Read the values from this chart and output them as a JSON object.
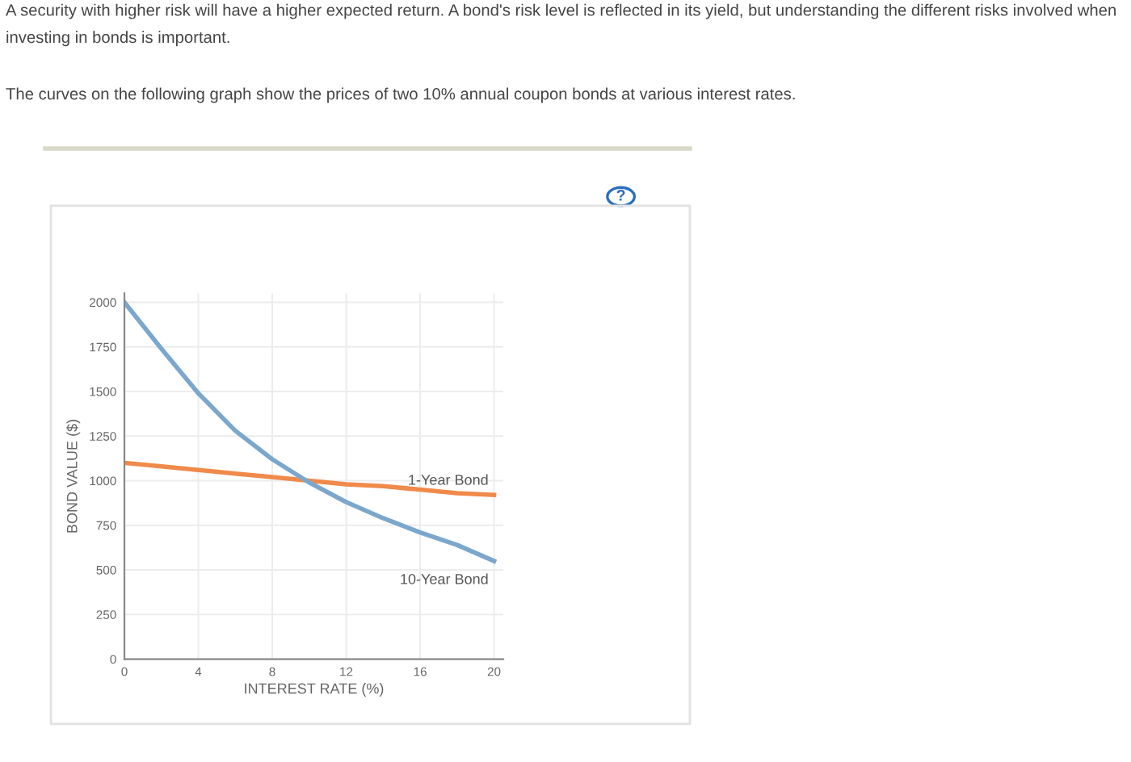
{
  "chart_data": {
    "type": "line",
    "title": "A security with higher risk will have a higher expected return. A bond's risk level is reflected in its yield, but understanding the different risks involved when investing in bonds is important.",
    "subtitle": "The curves on the following graph show the prices of two 10% annual coupon bonds at various interest rates.",
    "annotations": [
      "?"
    ],
    "xlabel": "INTEREST RATE (%)",
    "ylabel": "BOND VALUE ($)",
    "series": [
      {
        "name": "1-Year Bond",
        "color": "#f08a4b",
        "x": [
          0,
          2,
          4,
          6,
          8,
          10,
          12,
          14,
          16,
          18,
          20
        ],
        "values": [
          1100,
          1080,
          1060,
          1040,
          1020,
          1000,
          980,
          970,
          950,
          930,
          920
        ]
      },
      {
        "name": "10-Year Bond",
        "color": "#7ba7cc",
        "x": [
          0,
          2,
          4,
          6,
          8,
          10,
          12,
          14,
          16,
          18,
          20
        ],
        "values": [
          2000,
          1740,
          1490,
          1280,
          1120,
          990,
          880,
          790,
          710,
          640,
          550
        ]
      }
    ],
    "xlim": [
      0,
      20.5
    ],
    "ylim": [
      0,
      2050
    ],
    "xticks": [
      0,
      4,
      8,
      12,
      16,
      20
    ],
    "yticks": [
      0,
      250,
      500,
      750,
      1000,
      1250,
      1500,
      1750,
      2000
    ],
    "grid": true,
    "marker": "none",
    "line_style": "solid",
    "legend": false
  }
}
